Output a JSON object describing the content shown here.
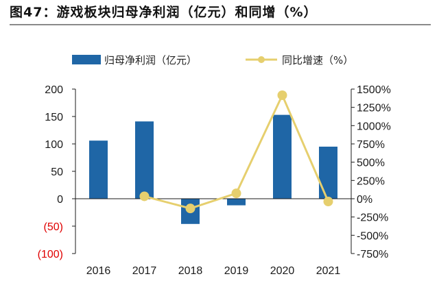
{
  "figure": {
    "number": "图47：",
    "title": "游戏板块归母净利润（亿元）和同增（%）"
  },
  "colors": {
    "bar": "#1f66a6",
    "line": "#e6cf6e",
    "negative_tick": "#e00000",
    "axis": "#1a1a1a"
  },
  "chart_data": {
    "type": "bar",
    "categories": [
      "2016",
      "2017",
      "2018",
      "2019",
      "2020",
      "2021"
    ],
    "series": [
      {
        "name": "归母净利润（亿元）",
        "type": "bar",
        "axis": "left",
        "values": [
          106,
          141,
          -46,
          -12,
          153,
          95
        ]
      },
      {
        "name": "同比增速（%）",
        "type": "line",
        "axis": "right",
        "values": [
          null,
          33,
          -133,
          74,
          1416,
          -38
        ]
      }
    ],
    "ylim_left": [
      -100,
      200
    ],
    "yticks_left": [
      "200",
      "150",
      "100",
      "50",
      "0",
      "(50)",
      "(100)"
    ],
    "ylim_right": [
      -750,
      1500
    ],
    "yticks_right": [
      "1500%",
      "1250%",
      "1000%",
      "750%",
      "500%",
      "250%",
      "0%",
      "-250%",
      "-500%",
      "-750%"
    ],
    "legend_position": "top-center",
    "grid": false
  }
}
